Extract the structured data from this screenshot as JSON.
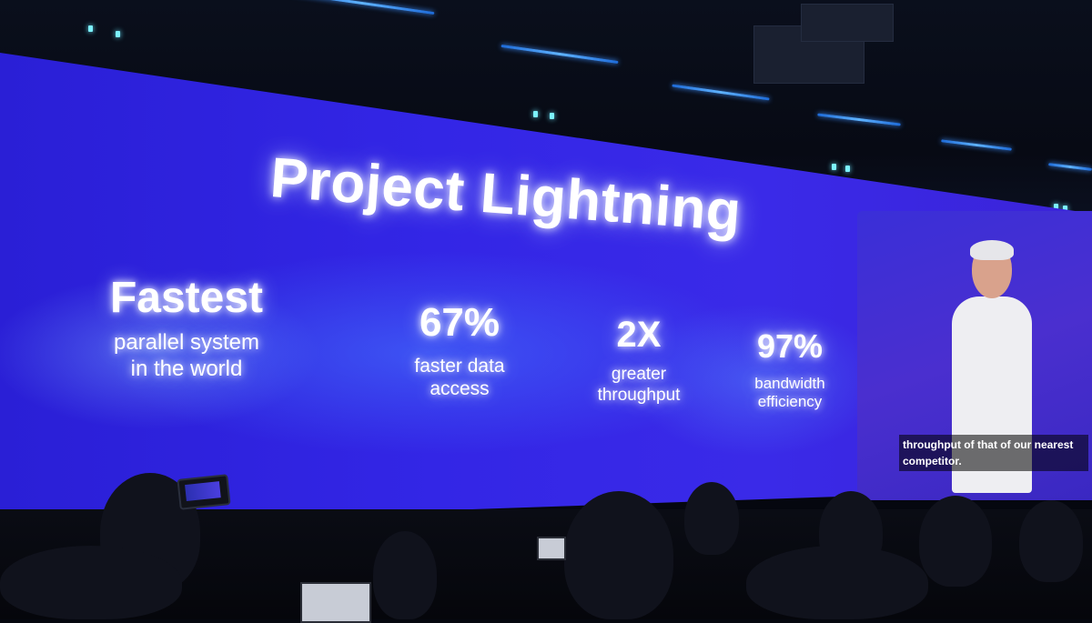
{
  "slide": {
    "title": "Project Lightning",
    "stats": [
      {
        "value": "Fastest",
        "caption_line1": "parallel system",
        "caption_line2": "in the world"
      },
      {
        "value": "67%",
        "caption_line1": "faster data",
        "caption_line2": "access"
      },
      {
        "value": "2X",
        "caption_line1": "greater",
        "caption_line2": "throughput"
      },
      {
        "value": "97%",
        "caption_line1": "bandwidth",
        "caption_line2": "efficiency"
      }
    ]
  },
  "presenter_feed": {
    "caption_line1": "throughput of that of our nearest",
    "caption_line2": "competitor."
  },
  "colors": {
    "screen_blue": "#3326e6",
    "text_glow": "#ffffff",
    "ceiling_accent": "#5fb3ff"
  }
}
